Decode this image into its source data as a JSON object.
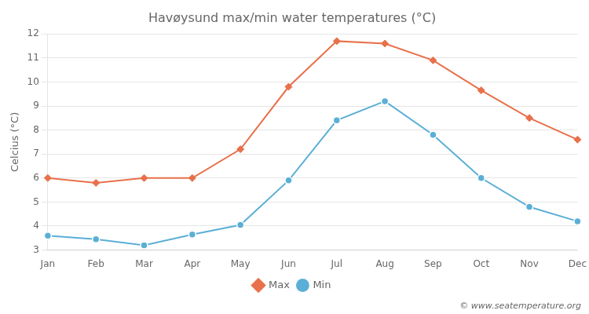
{
  "chart_data": {
    "type": "line",
    "title": "Havøysund max/min water temperatures (°C)",
    "ylabel": "Celcius (°C)",
    "categories": [
      "Jan",
      "Feb",
      "Mar",
      "Apr",
      "May",
      "Jun",
      "Jul",
      "Aug",
      "Sep",
      "Oct",
      "Nov",
      "Dec"
    ],
    "series": [
      {
        "name": "Max",
        "color": "#e8704a",
        "marker": "diamond",
        "values": [
          6.0,
          5.8,
          6.0,
          6.0,
          7.2,
          9.8,
          11.7,
          11.6,
          10.9,
          9.65,
          8.5,
          7.6
        ]
      },
      {
        "name": "Min",
        "color": "#5bafd6",
        "marker": "circle",
        "values": [
          3.6,
          3.45,
          3.2,
          3.65,
          4.05,
          5.9,
          8.4,
          9.2,
          7.8,
          6.0,
          4.8,
          4.2
        ]
      }
    ],
    "ylim": [
      3,
      12
    ],
    "yticks": [
      3,
      4,
      5,
      6,
      7,
      8,
      9,
      10,
      11,
      12
    ],
    "grid": true,
    "legend": "bottom",
    "annotations": [
      "© www.seatemperature.org"
    ]
  }
}
